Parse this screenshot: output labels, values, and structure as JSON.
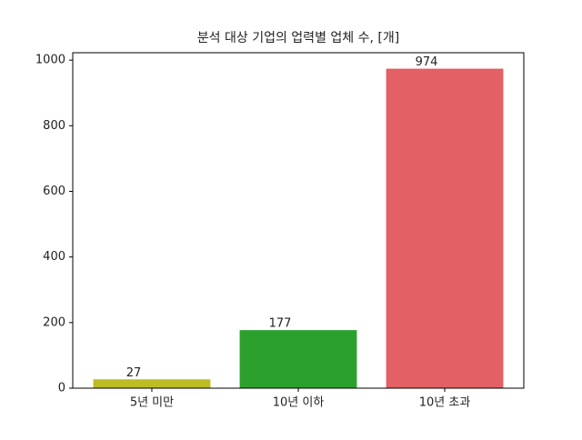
{
  "chart_data": {
    "type": "bar",
    "title": "분석 대상 기업의 업력별 업체 수, [개]",
    "categories": [
      "5년 미만",
      "10년 이하",
      "10년 초과"
    ],
    "values": [
      27,
      177,
      974
    ],
    "colors": [
      "#bcbd22",
      "#2ca02c",
      "#e36064"
    ],
    "ylim": [
      0,
      1022.7
    ],
    "yticks": [
      0,
      200,
      400,
      600,
      800,
      1000
    ],
    "grid": false
  }
}
